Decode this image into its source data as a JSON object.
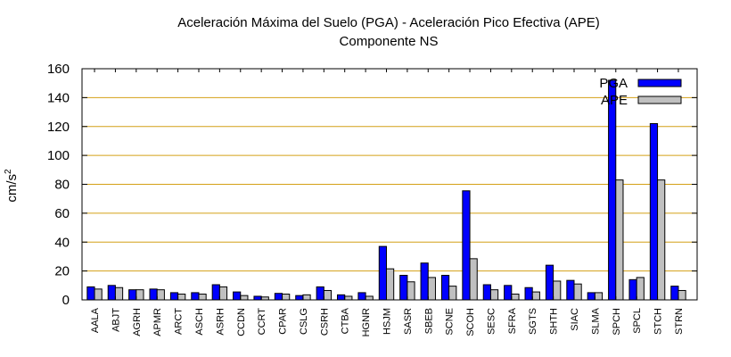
{
  "chart_data": {
    "type": "bar",
    "title": "Aceleración Máxima del Suelo (PGA) -  Aceleración Pico Efectiva (APE)",
    "subtitle": "Componente NS",
    "xlabel": "",
    "ylabel": "cm/s",
    "ylabel_superscript": "2",
    "ylim": [
      0,
      160
    ],
    "yticks": [
      0,
      20,
      40,
      60,
      80,
      100,
      120,
      140,
      160
    ],
    "grid": true,
    "legend_position": "top-right",
    "categories": [
      "AALA",
      "ABJT",
      "AGRH",
      "APMR",
      "ARCT",
      "ASCH",
      "ASRH",
      "CCDN",
      "CCRT",
      "CPAR",
      "CSLG",
      "CSRH",
      "CTBA",
      "HGNR",
      "HSJM",
      "SASR",
      "SBEB",
      "SCNE",
      "SCOH",
      "SESC",
      "SFRA",
      "SGTS",
      "SHTH",
      "SIAC",
      "SLMA",
      "SPCH",
      "SPCL",
      "STCH",
      "STRN"
    ],
    "series": [
      {
        "name": "PGA",
        "color": "#0000ff",
        "values": [
          9,
          10,
          7,
          7.5,
          5,
          5,
          10.5,
          5.5,
          2.5,
          4.5,
          3,
          9,
          3.5,
          5,
          37,
          17,
          25.5,
          17,
          75.5,
          10.5,
          10,
          8.5,
          24,
          13.5,
          5,
          152,
          14,
          122,
          9.5
        ]
      },
      {
        "name": "APE",
        "color": "#c0c0c0",
        "values": [
          7.5,
          8.5,
          7,
          7,
          4,
          4,
          9,
          3,
          2,
          4,
          3.5,
          6.5,
          2.5,
          2.5,
          21.5,
          12.5,
          15.5,
          9.5,
          28.5,
          7,
          4,
          5.5,
          13,
          11,
          5,
          83,
          15.5,
          83,
          6.5
        ]
      }
    ]
  }
}
